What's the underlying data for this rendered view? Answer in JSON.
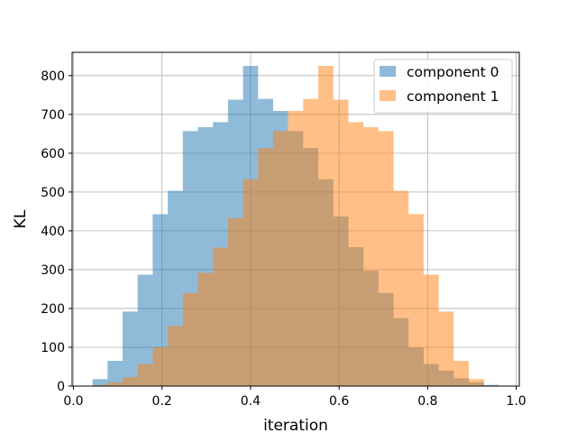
{
  "chart_data": {
    "type": "histogram",
    "xlabel": "iteration",
    "ylabel": "KL",
    "xlim": [
      0.0,
      1.0
    ],
    "ylim": [
      0,
      860
    ],
    "xticks": [
      0.0,
      0.2,
      0.4,
      0.6,
      0.8,
      1.0
    ],
    "xtick_labels": [
      "0.0",
      "0.2",
      "0.4",
      "0.6",
      "0.8",
      "1.0"
    ],
    "yticks": [
      0,
      100,
      200,
      300,
      400,
      500,
      600,
      700,
      800
    ],
    "ytick_labels": [
      "0",
      "100",
      "200",
      "300",
      "400",
      "500",
      "600",
      "700",
      "800"
    ],
    "grid": true,
    "legend_position": "top-right",
    "series": [
      {
        "name": "component 0",
        "color": "#1f77b4",
        "alpha": 0.5,
        "bin_edges": [
          0.043,
          0.077,
          0.111,
          0.145,
          0.179,
          0.213,
          0.247,
          0.281,
          0.315,
          0.349,
          0.383,
          0.417,
          0.451,
          0.485,
          0.519,
          0.553,
          0.587,
          0.621,
          0.655,
          0.689,
          0.723,
          0.757,
          0.791,
          0.825,
          0.859,
          0.893,
          0.927,
          0.961
        ],
        "counts": [
          18,
          65,
          192,
          287,
          443,
          503,
          657,
          667,
          680,
          738,
          825,
          740,
          709,
          657,
          613,
          533,
          437,
          358,
          297,
          240,
          175,
          100,
          57,
          40,
          20,
          10,
          3
        ]
      },
      {
        "name": "component 1",
        "color": "#ff7f0e",
        "alpha": 0.5,
        "bin_edges": [
          0.043,
          0.077,
          0.111,
          0.145,
          0.179,
          0.213,
          0.247,
          0.281,
          0.315,
          0.349,
          0.383,
          0.417,
          0.451,
          0.485,
          0.519,
          0.553,
          0.587,
          0.621,
          0.655,
          0.689,
          0.723,
          0.757,
          0.791,
          0.825,
          0.859,
          0.893,
          0.927,
          0.961
        ],
        "counts": [
          3,
          10,
          23,
          57,
          100,
          155,
          240,
          292,
          357,
          433,
          533,
          613,
          657,
          709,
          740,
          825,
          738,
          680,
          667,
          657,
          503,
          443,
          287,
          192,
          65,
          18,
          0
        ]
      }
    ]
  }
}
